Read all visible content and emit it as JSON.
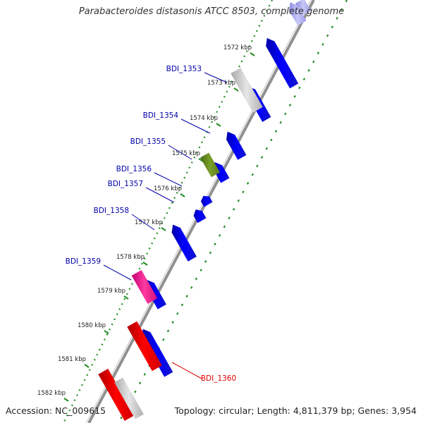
{
  "title": "Parabacteroides distasonis ATCC 8503, complete genome",
  "footer": {
    "accession": "Accession: NC_009615",
    "topology": "Topology: circular; Length: 4,811,379 bp; Genes: 3,954"
  },
  "colors": {
    "forward_gene": "#0000ee",
    "pseudo_gene": "#c8c8c8",
    "gene_olive": "#6b8e23",
    "gene_magenta": "#ee1493",
    "gene_red": "#ee0000",
    "tick": "#228b22",
    "label_blue": "#0000aa",
    "label_red": "#dd0000"
  },
  "kbp_ticks": [
    "1572 kbp",
    "1573 kbp",
    "1574 kbp",
    "1575 kbp",
    "1576 kbp",
    "1577 kbp",
    "1578 kbp",
    "1579 kbp",
    "1580 kbp",
    "1581 kbp",
    "1582 kbp"
  ],
  "gene_labels": [
    "BDI_1353",
    "BDI_1354",
    "BDI_1355",
    "BDI_1356",
    "BDI_1357",
    "BDI_1358",
    "BDI_1359",
    "BDI_1360"
  ]
}
